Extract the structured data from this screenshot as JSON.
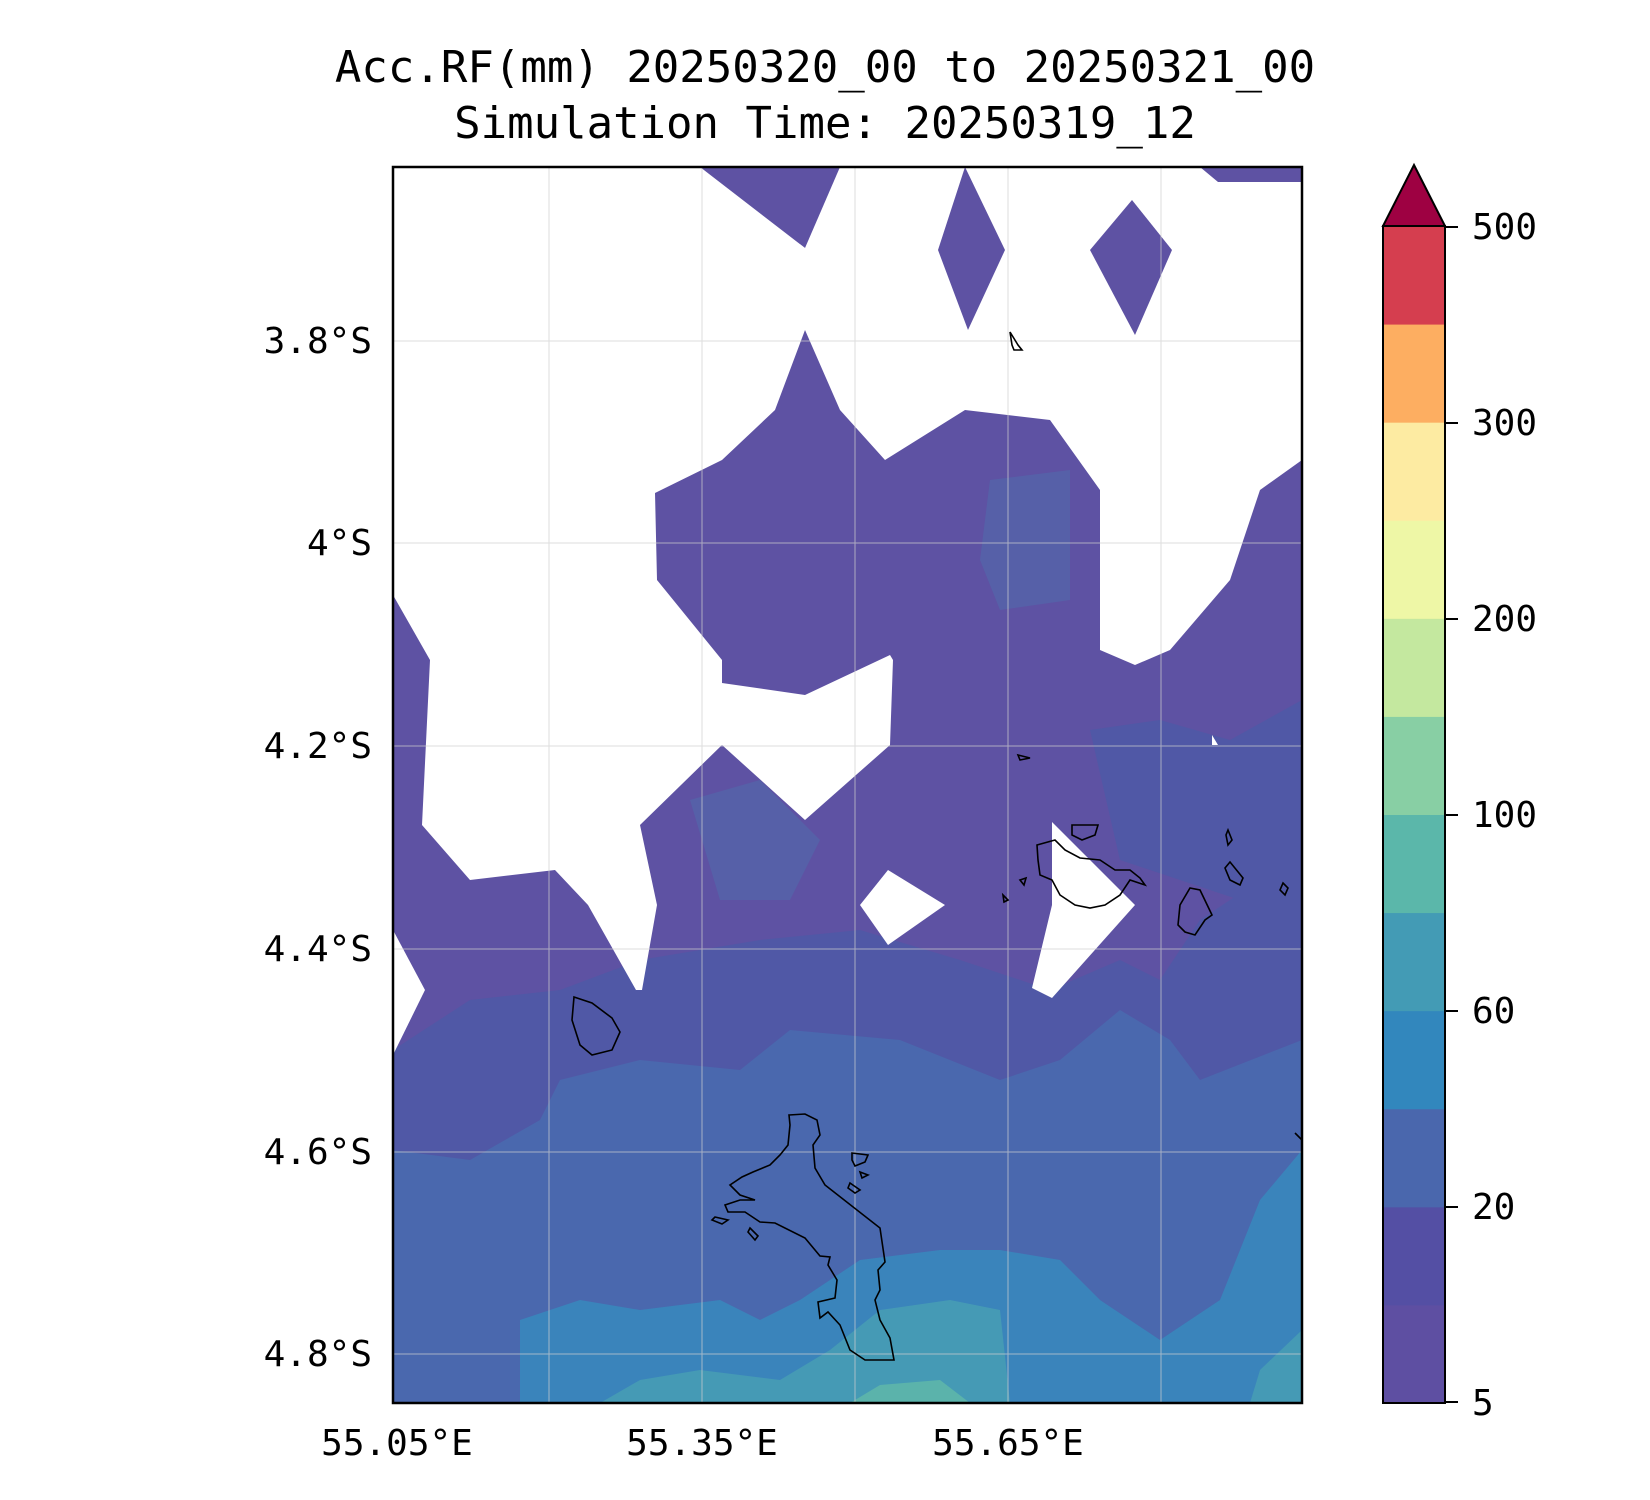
{
  "title": {
    "line1": "Acc.RF(mm) 20250320_00 to 20250321_00",
    "line2": "Simulation Time: 20250319_12"
  },
  "map": {
    "lon_ticks": [
      "55.05°E",
      "55.35°E",
      "55.65°E"
    ],
    "lat_ticks": [
      "3.8°S",
      "4°S",
      "4.2°S",
      "4.4°S",
      "4.6°S",
      "4.8°S"
    ],
    "lon_range": [
      55.05,
      55.94
    ],
    "lat_range": [
      -4.845,
      -3.63
    ],
    "grid": true
  },
  "colorbar": {
    "tick_labels": [
      "500",
      "300",
      "200",
      "100",
      "60",
      "20",
      "5"
    ],
    "colors": [
      "#5e4fa2",
      "#544fa4",
      "#4a67ad",
      "#3287bd",
      "#439bb5",
      "#5bb7aa",
      "#88cfa4",
      "#c4e89f",
      "#eef7a6",
      "#fdeba2",
      "#fdae61",
      "#d53e4f",
      "#9e0142"
    ],
    "extend": "max"
  }
}
